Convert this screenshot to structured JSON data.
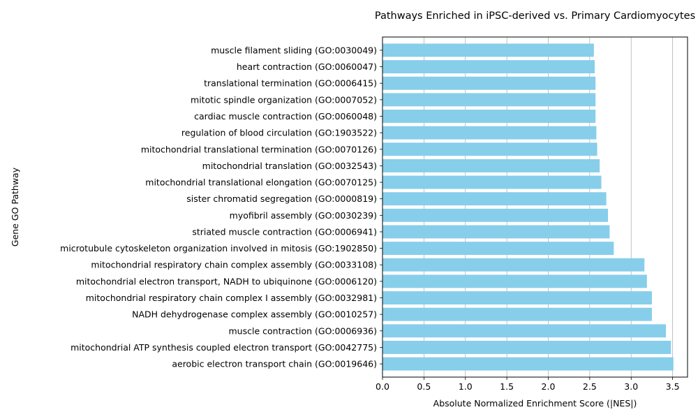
{
  "chart_data": {
    "type": "bar",
    "orientation": "horizontal",
    "title": "Pathways Enriched in iPSC-derived vs. Primary Cardiomyocytes",
    "xlabel": "Absolute Normalized Enrichment Score (|NES|)",
    "ylabel": "Gene GO Pathway",
    "xlim": [
      0,
      3.68
    ],
    "xticks": [
      "0.0",
      "0.5",
      "1.0",
      "1.5",
      "2.0",
      "2.5",
      "3.0",
      "3.5"
    ],
    "grid": "x",
    "bar_color": "#87CEEB",
    "grid_color": "#b0b0b0",
    "categories": [
      "aerobic electron transport chain (GO:0019646)",
      "mitochondrial ATP synthesis coupled electron transport (GO:0042775)",
      "muscle contraction (GO:0006936)",
      "NADH dehydrogenase complex assembly (GO:0010257)",
      "mitochondrial respiratory chain complex I assembly (GO:0032981)",
      "mitochondrial electron transport, NADH to ubiquinone (GO:0006120)",
      "mitochondrial respiratory chain complex assembly (GO:0033108)",
      "microtubule cytoskeleton organization involved in mitosis (GO:1902850)",
      "striated muscle contraction (GO:0006941)",
      "myofibril assembly (GO:0030239)",
      "sister chromatid segregation (GO:0000819)",
      "mitochondrial translational elongation (GO:0070125)",
      "mitochondrial translation (GO:0032543)",
      "mitochondrial translational termination (GO:0070126)",
      "regulation of blood circulation (GO:1903522)",
      "cardiac muscle contraction (GO:0060048)",
      "mitotic spindle organization (GO:0007052)",
      "translational termination (GO:0006415)",
      "heart contraction (GO:0060047)",
      "muscle filament sliding (GO:0030049)"
    ],
    "values": [
      3.51,
      3.48,
      3.42,
      3.25,
      3.25,
      3.19,
      3.16,
      2.79,
      2.74,
      2.72,
      2.7,
      2.64,
      2.62,
      2.59,
      2.58,
      2.57,
      2.57,
      2.57,
      2.56,
      2.55
    ]
  }
}
